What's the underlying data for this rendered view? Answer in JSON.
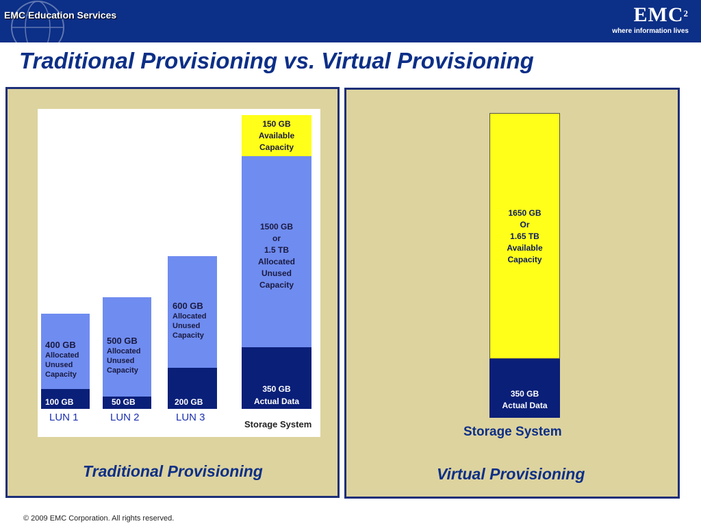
{
  "header": {
    "left_brand": "EMC Education Services",
    "logo": "EMC",
    "logo_superscript": "2",
    "tagline": "where information lives"
  },
  "title": "Traditional Provisioning vs. Virtual Provisioning",
  "traditional": {
    "caption": "Traditional Provisioning",
    "storage_label": "Storage System",
    "luns": [
      {
        "name": "LUN 1",
        "used_label": "100 GB",
        "unused_size": "400 GB",
        "unused_desc": [
          "Allocated",
          "Unused",
          "Capacity"
        ]
      },
      {
        "name": "LUN 2",
        "used_label": "50 GB",
        "unused_size": "500 GB",
        "unused_desc": [
          "Allocated",
          "Unused",
          "Capacity"
        ]
      },
      {
        "name": "LUN 3",
        "used_label": "200 GB",
        "unused_size": "600 GB",
        "unused_desc": [
          "Allocated",
          "Unused",
          "Capacity"
        ]
      }
    ],
    "storage": {
      "available_lines": [
        "150 GB",
        "Available",
        "Capacity"
      ],
      "unused_lines": [
        "1500 GB",
        "or",
        "1.5 TB",
        "Allocated",
        "Unused",
        "Capacity"
      ],
      "actual_lines": [
        "350 GB",
        "Actual Data"
      ]
    }
  },
  "virtual": {
    "caption": "Virtual Provisioning",
    "storage_label": "Storage System",
    "available_lines": [
      "1650 GB",
      "Or",
      "1.65 TB",
      "Available",
      "Capacity"
    ],
    "actual_lines": [
      "350 GB",
      "Actual Data"
    ]
  },
  "footer": "© 2009 EMC Corporation. All rights reserved.",
  "colors": {
    "header_blue": "#0c2f87",
    "panel_tan": "#ddd39e",
    "bar_light_blue": "#6f8cf0",
    "bar_dark_blue": "#0a1f78",
    "available_yellow": "#ffff1a"
  },
  "icons": [
    "globe-icon"
  ]
}
